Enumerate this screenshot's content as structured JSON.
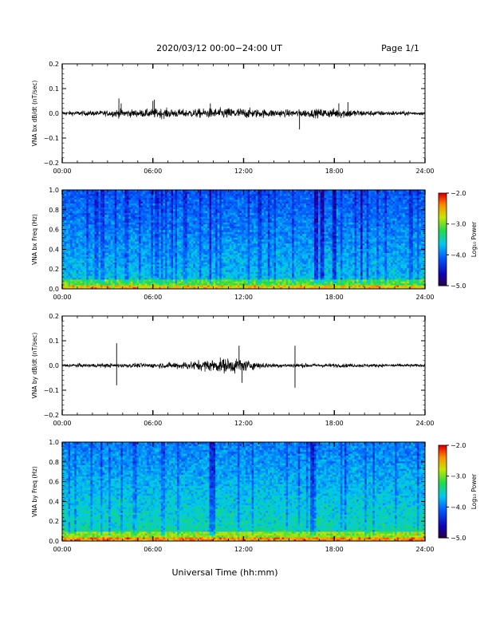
{
  "header": {
    "date_range": "2020/03/12  00:00−24:00 UT",
    "page": "Page 1/1"
  },
  "x_axis": {
    "ticks": [
      "00:00",
      "06:00",
      "12:00",
      "18:00",
      "24:00"
    ],
    "label": "Universal Time (hh:mm)",
    "range_hours": [
      0,
      24
    ]
  },
  "chart_data": [
    {
      "type": "line",
      "id": "bx_waveform",
      "ylabel": "VNA bx dB/dt (nT/sec)",
      "ylim": [
        -0.2,
        0.2
      ],
      "y_ticks": [
        "−0.2",
        "−0.1",
        "0.0",
        "0.1",
        "0.2"
      ],
      "baseline_amplitude": 0.012,
      "envelope": [
        {
          "x": 0.0,
          "amp": 0.015
        },
        {
          "x": 3.0,
          "amp": 0.02
        },
        {
          "x": 3.7,
          "amp": 0.03
        },
        {
          "x": 5.0,
          "amp": 0.025
        },
        {
          "x": 6.5,
          "amp": 0.035
        },
        {
          "x": 8.0,
          "amp": 0.028
        },
        {
          "x": 10.0,
          "amp": 0.035
        },
        {
          "x": 11.5,
          "amp": 0.04
        },
        {
          "x": 13.0,
          "amp": 0.03
        },
        {
          "x": 15.0,
          "amp": 0.025
        },
        {
          "x": 17.0,
          "amp": 0.03
        },
        {
          "x": 18.5,
          "amp": 0.035
        },
        {
          "x": 20.0,
          "amp": 0.02
        },
        {
          "x": 24.0,
          "amp": 0.012
        }
      ],
      "spikes": [
        {
          "x": 3.75,
          "y": 0.06
        },
        {
          "x": 3.9,
          "y": 0.04
        },
        {
          "x": 6.1,
          "y": 0.055
        },
        {
          "x": 6.0,
          "y": 0.05
        },
        {
          "x": 9.8,
          "y": 0.04
        },
        {
          "x": 15.7,
          "y": -0.065
        },
        {
          "x": 18.9,
          "y": 0.045
        },
        {
          "x": 18.3,
          "y": 0.04
        }
      ]
    },
    {
      "type": "heatmap",
      "id": "bx_spectrogram",
      "ylabel": "VNA bx Freq (Hz)",
      "ylim": [
        0.0,
        1.0
      ],
      "y_ticks": [
        "0.0",
        "0.2",
        "0.4",
        "0.6",
        "0.8",
        "1.0"
      ],
      "colorbar": {
        "label": "Log₁₀ Power",
        "range": [
          -5.0,
          -2.0
        ],
        "ticks": [
          "−2.0",
          "−3.0",
          "−4.0",
          "−5.0"
        ]
      },
      "dark_stripes_hours": [
        9.8,
        16.8,
        17.2,
        18.0,
        19.8
      ]
    },
    {
      "type": "line",
      "id": "by_waveform",
      "ylabel": "VNA by dB/dt (nT/sec)",
      "ylim": [
        -0.2,
        0.2
      ],
      "y_ticks": [
        "−0.2",
        "−0.1",
        "0.0",
        "0.1",
        "0.2"
      ],
      "baseline_amplitude": 0.01,
      "envelope": [
        {
          "x": 0.0,
          "amp": 0.012
        },
        {
          "x": 3.5,
          "amp": 0.015
        },
        {
          "x": 5.0,
          "amp": 0.015
        },
        {
          "x": 7.0,
          "amp": 0.02
        },
        {
          "x": 9.0,
          "amp": 0.035
        },
        {
          "x": 10.5,
          "amp": 0.05
        },
        {
          "x": 11.5,
          "amp": 0.055
        },
        {
          "x": 12.5,
          "amp": 0.03
        },
        {
          "x": 14.0,
          "amp": 0.015
        },
        {
          "x": 16.0,
          "amp": 0.015
        },
        {
          "x": 20.0,
          "amp": 0.012
        },
        {
          "x": 24.0,
          "amp": 0.01
        }
      ],
      "spikes": [
        {
          "x": 3.6,
          "y": 0.09
        },
        {
          "x": 3.6,
          "y": -0.08
        },
        {
          "x": 15.4,
          "y": 0.08
        },
        {
          "x": 15.4,
          "y": -0.09
        },
        {
          "x": 11.7,
          "y": 0.08
        },
        {
          "x": 11.9,
          "y": -0.07
        }
      ]
    },
    {
      "type": "heatmap",
      "id": "by_spectrogram",
      "ylabel": "VNA by Freq (Hz)",
      "ylim": [
        0.0,
        1.0
      ],
      "y_ticks": [
        "0.0",
        "0.2",
        "0.4",
        "0.6",
        "0.8",
        "1.0"
      ],
      "colorbar": {
        "label": "Log₁₀ Power",
        "range": [
          -5.0,
          -2.0
        ],
        "ticks": [
          "−2.0",
          "−3.0",
          "−4.0",
          "−5.0"
        ]
      },
      "dark_stripes_hours": [
        9.8,
        10.0,
        16.5
      ]
    }
  ]
}
